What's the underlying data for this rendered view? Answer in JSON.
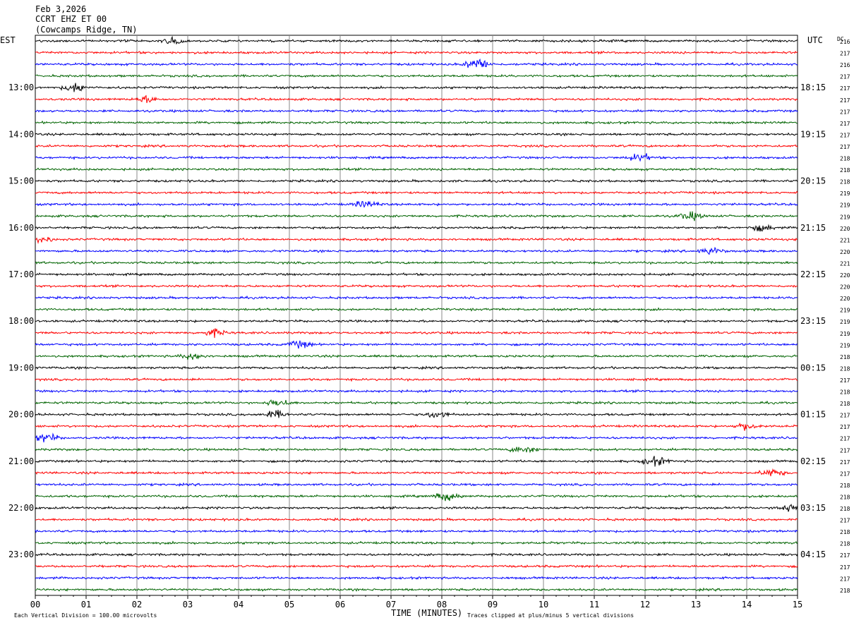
{
  "header": {
    "date": "Feb 3,2026",
    "station": "CCRT EHZ ET 00",
    "location": "(Cowcamps Ridge, TN)"
  },
  "axes": {
    "left_label": "EST",
    "right_label": "UTC",
    "dc_label": "DC",
    "xlabel": "TIME (MINUTES)"
  },
  "footer": {
    "scale_note": "Each Vertical Division =  100.00 microvolts",
    "clip_note": "Traces clipped at plus/minus 5 vertical divisions"
  },
  "chart_data": {
    "type": "line",
    "title": "CCRT EHZ ET 00",
    "xlabel": "TIME (MINUTES)",
    "x_ticks": [
      "00",
      "01",
      "02",
      "03",
      "04",
      "05",
      "06",
      "07",
      "08",
      "09",
      "10",
      "11",
      "12",
      "13",
      "14",
      "15"
    ],
    "xlim": [
      0,
      15
    ],
    "grid": true,
    "trace_count": 48,
    "trace_colors": [
      "#000000",
      "#ff0000",
      "#0000ff",
      "#006400"
    ],
    "est_labels": [
      "13:00",
      "14:00",
      "15:00",
      "16:00",
      "17:00",
      "18:00",
      "19:00",
      "20:00",
      "21:00",
      "22:00",
      "23:00"
    ],
    "utc_labels": [
      "18:15",
      "19:15",
      "20:15",
      "21:15",
      "22:15",
      "23:15",
      "00:15",
      "01:15",
      "02:15",
      "03:15",
      "04:15"
    ],
    "dc_offsets": [
      "216",
      "217",
      "216",
      "217",
      "217",
      "217",
      "217",
      "217",
      "217",
      "217",
      "218",
      "218",
      "218",
      "219",
      "219",
      "219",
      "220",
      "221",
      "220",
      "221",
      "220",
      "220",
      "220",
      "219",
      "219",
      "219",
      "219",
      "218",
      "218",
      "217",
      "218",
      "218",
      "217",
      "217",
      "217",
      "217",
      "217",
      "217",
      "218",
      "218",
      "218",
      "217",
      "218",
      "218",
      "217",
      "217",
      "217",
      "218"
    ],
    "bursts": [
      {
        "trace": 0,
        "minute": 2.7,
        "amp": 1.6
      },
      {
        "trace": 2,
        "minute": 8.7,
        "amp": 3.0
      },
      {
        "trace": 4,
        "minute": 0.8,
        "amp": 2.3
      },
      {
        "trace": 5,
        "minute": 2.2,
        "amp": 1.6
      },
      {
        "trace": 10,
        "minute": 11.9,
        "amp": 1.9
      },
      {
        "trace": 14,
        "minute": 6.5,
        "amp": 1.6
      },
      {
        "trace": 15,
        "minute": 12.9,
        "amp": 1.9
      },
      {
        "trace": 16,
        "minute": 14.3,
        "amp": 1.6
      },
      {
        "trace": 17,
        "minute": 0.1,
        "amp": 1.7
      },
      {
        "trace": 18,
        "minute": 13.3,
        "amp": 1.7
      },
      {
        "trace": 25,
        "minute": 3.5,
        "amp": 1.8
      },
      {
        "trace": 26,
        "minute": 5.2,
        "amp": 1.9
      },
      {
        "trace": 27,
        "minute": 3.1,
        "amp": 1.7
      },
      {
        "trace": 31,
        "minute": 4.8,
        "amp": 1.8
      },
      {
        "trace": 32,
        "minute": 4.7,
        "amp": 1.9
      },
      {
        "trace": 32,
        "minute": 7.9,
        "amp": 1.7
      },
      {
        "trace": 33,
        "minute": 14.0,
        "amp": 1.8
      },
      {
        "trace": 34,
        "minute": 0.2,
        "amp": 2.2
      },
      {
        "trace": 35,
        "minute": 9.6,
        "amp": 1.9
      },
      {
        "trace": 36,
        "minute": 12.2,
        "amp": 2.2
      },
      {
        "trace": 37,
        "minute": 14.5,
        "amp": 1.8
      },
      {
        "trace": 39,
        "minute": 8.1,
        "amp": 2.3
      },
      {
        "trace": 40,
        "minute": 14.8,
        "amp": 1.7
      }
    ]
  }
}
